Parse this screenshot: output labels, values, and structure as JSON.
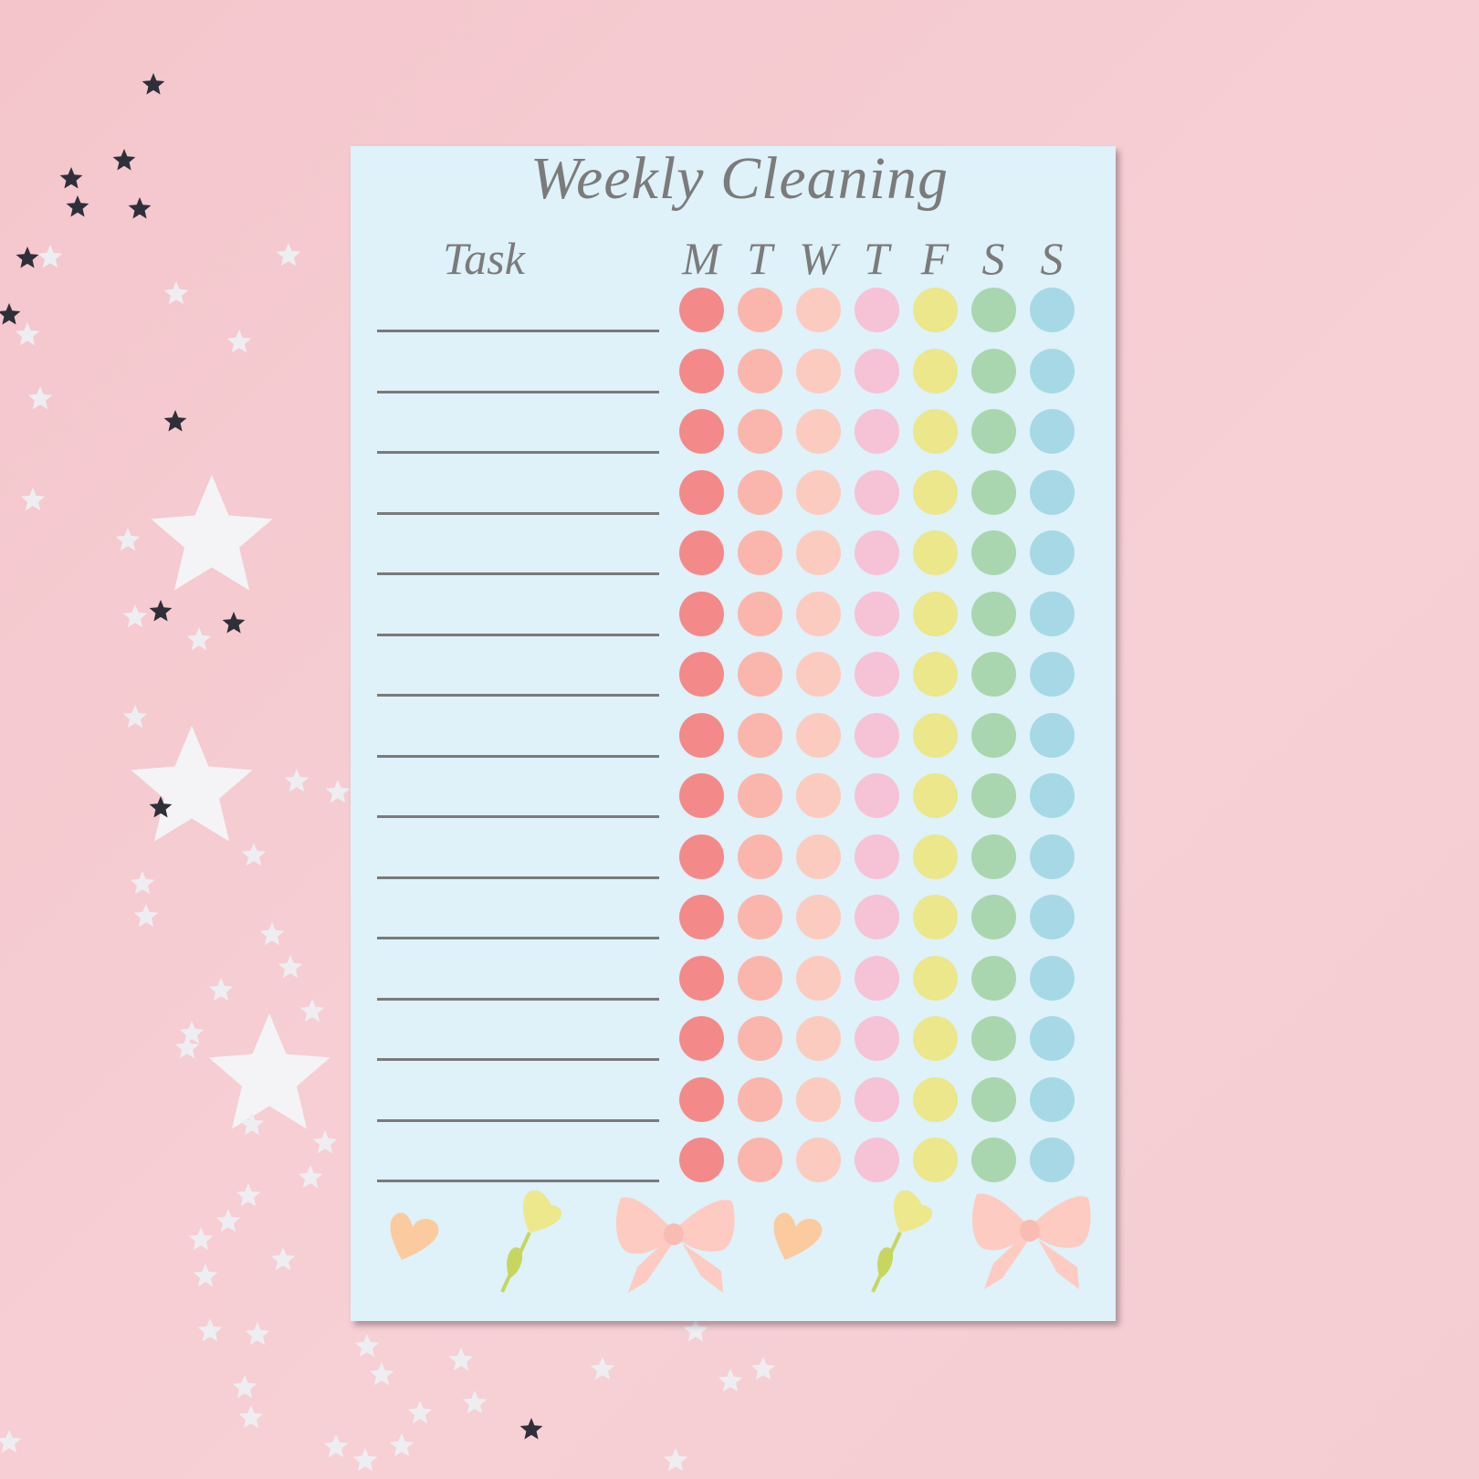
{
  "sheet": {
    "title": "Weekly Cleaning",
    "task_header": "Task",
    "days": [
      "M",
      "T",
      "W",
      "T",
      "F",
      "S",
      "S"
    ],
    "row_count": 15,
    "day_colors": [
      "#f4898a",
      "#fab6ac",
      "#fbcbc0",
      "#f6c2d6",
      "#ebe78a",
      "#a9d6ae",
      "#a6d9e5"
    ],
    "background_color": "#dff1f9",
    "text_color": "#7b7b7b",
    "decorations": [
      "heart-icon",
      "flower-icon",
      "bow-icon",
      "heart-icon",
      "flower-icon",
      "bow-icon"
    ]
  },
  "backdrop": {
    "color": "#f5cbd1",
    "confetti": "star-confetti"
  }
}
